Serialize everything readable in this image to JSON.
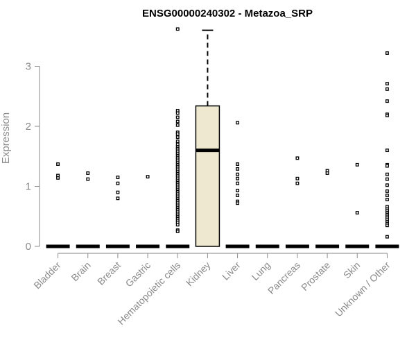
{
  "chart_data": {
    "type": "boxplot",
    "title": "ENSG00000240302 - Metazoa_SRP",
    "ylabel": "Expression",
    "xlabel": "",
    "ylim": [
      0,
      3.6
    ],
    "yticks": [
      0,
      1,
      2,
      3
    ],
    "grid": false,
    "box_fill": "#ede8cf",
    "categories": [
      {
        "name": "Bladder",
        "median": 0,
        "q1": 0,
        "q3": 0,
        "whisker_low": 0,
        "whisker_high": 0,
        "outliers": [
          1.37,
          1.18,
          1.14
        ]
      },
      {
        "name": "Brain",
        "median": 0,
        "q1": 0,
        "q3": 0,
        "whisker_low": 0,
        "whisker_high": 0,
        "outliers": [
          1.22,
          1.12
        ]
      },
      {
        "name": "Breast",
        "median": 0,
        "q1": 0,
        "q3": 0,
        "whisker_low": 0,
        "whisker_high": 0,
        "outliers": [
          1.15,
          1.05,
          0.9,
          0.8
        ]
      },
      {
        "name": "Gastric",
        "median": 0,
        "q1": 0,
        "q3": 0,
        "whisker_low": 0,
        "whisker_high": 0,
        "outliers": [
          1.16
        ]
      },
      {
        "name": "Hematopoietic cells",
        "median": 0,
        "q1": 0,
        "q3": 0,
        "whisker_low": 0,
        "whisker_high": 0,
        "outliers": [
          3.62,
          2.26,
          2.22,
          2.15,
          2.08,
          2.02,
          1.9,
          1.87,
          1.82,
          1.75,
          1.7,
          1.66,
          1.63,
          1.6,
          1.57,
          1.54,
          1.51,
          1.48,
          1.45,
          1.42,
          1.39,
          1.36,
          1.33,
          1.3,
          1.27,
          1.24,
          1.21,
          1.18,
          1.15,
          1.12,
          1.09,
          1.06,
          1.03,
          1.0,
          0.97,
          0.94,
          0.91,
          0.88,
          0.85,
          0.82,
          0.79,
          0.76,
          0.73,
          0.7,
          0.67,
          0.64,
          0.61,
          0.58,
          0.55,
          0.52,
          0.49,
          0.46,
          0.43,
          0.4,
          0.36,
          0.27,
          0.25
        ]
      },
      {
        "name": "Kidney",
        "median": 1.6,
        "q1": 0,
        "q3": 2.34,
        "whisker_low": 0,
        "whisker_high": 3.6,
        "outliers": []
      },
      {
        "name": "Liver",
        "median": 0,
        "q1": 0,
        "q3": 0,
        "whisker_low": 0,
        "whisker_high": 0,
        "outliers": [
          2.06,
          1.37,
          1.29,
          1.2,
          1.13,
          1.05,
          0.93,
          0.85,
          0.75,
          0.72
        ]
      },
      {
        "name": "Lung",
        "median": 0,
        "q1": 0,
        "q3": 0,
        "whisker_low": 0,
        "whisker_high": 0,
        "outliers": []
      },
      {
        "name": "Pancreas",
        "median": 0,
        "q1": 0,
        "q3": 0,
        "whisker_low": 0,
        "whisker_high": 0,
        "outliers": [
          1.47,
          1.13,
          1.05
        ]
      },
      {
        "name": "Prostate",
        "median": 0,
        "q1": 0,
        "q3": 0,
        "whisker_low": 0,
        "whisker_high": 0,
        "outliers": [
          1.26,
          1.22
        ]
      },
      {
        "name": "Skin",
        "median": 0,
        "q1": 0,
        "q3": 0,
        "whisker_low": 0,
        "whisker_high": 0,
        "outliers": [
          1.36,
          0.56
        ]
      },
      {
        "name": "Unknown / Other",
        "median": 0,
        "q1": 0,
        "q3": 0,
        "whisker_low": 0,
        "whisker_high": 0,
        "outliers": [
          3.22,
          2.71,
          2.62,
          2.42,
          2.2,
          2.18,
          1.6,
          1.36,
          1.34,
          1.2,
          1.12,
          1.02,
          0.92,
          0.85,
          0.78,
          0.66,
          0.62,
          0.59,
          0.56,
          0.53,
          0.5,
          0.47,
          0.44,
          0.41,
          0.38,
          0.35,
          0.16
        ]
      }
    ]
  }
}
